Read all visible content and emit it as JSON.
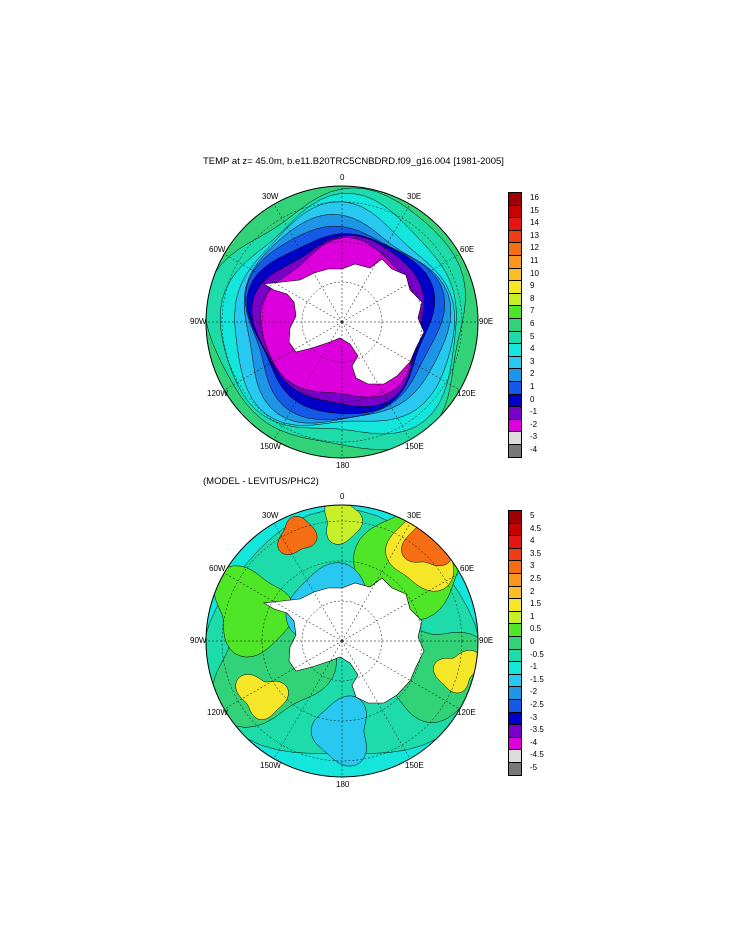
{
  "panels": [
    {
      "id": "temp",
      "title": "TEMP at z=  45.0m, b.e11.B20TRC5CNBDRD.f09_g16.004 [1981-2005]",
      "lon_labels": [
        "0",
        "30E",
        "60E",
        "90E",
        "120E",
        "150E",
        "180",
        "150W",
        "120W",
        "90W",
        "60W",
        "30W"
      ],
      "colorbar": {
        "ticks": [
          "16",
          "15",
          "14",
          "13",
          "12",
          "11",
          "10",
          "9",
          "8",
          "7",
          "6",
          "5",
          "4",
          "3",
          "2",
          "1",
          "0",
          "-1",
          "-2",
          "-3",
          "-4"
        ],
        "colors": [
          "#a00000",
          "#c80000",
          "#e61414",
          "#f03c14",
          "#f56e14",
          "#fa961e",
          "#fabe28",
          "#f5e628",
          "#c8f028",
          "#50e628",
          "#32d278",
          "#1edcaa",
          "#14e6dc",
          "#28c8f0",
          "#1e96e6",
          "#145ae6",
          "#0000c8",
          "#7800c8",
          "#dc00dc",
          "#dcdcdc",
          "#787878"
        ]
      }
    },
    {
      "id": "diff",
      "title": "(MODEL - LEVITUS/PHC2)",
      "lon_labels": [
        "0",
        "30E",
        "60E",
        "90E",
        "120E",
        "150E",
        "180",
        "150W",
        "120W",
        "90W",
        "60W",
        "30W"
      ],
      "colorbar": {
        "ticks": [
          "5",
          "4.5",
          "4",
          "3.5",
          "3",
          "2.5",
          "2",
          "1.5",
          "1",
          "0.5",
          "0",
          "-0.5",
          "-1",
          "-1.5",
          "-2",
          "-2.5",
          "-3",
          "-3.5",
          "-4",
          "-4.5",
          "-5"
        ],
        "colors": [
          "#a00000",
          "#c80000",
          "#e61414",
          "#f03c14",
          "#f56e14",
          "#fa961e",
          "#fabe28",
          "#f5e628",
          "#c8f028",
          "#50e628",
          "#32d278",
          "#1edcaa",
          "#14e6dc",
          "#28c8f0",
          "#1e96e6",
          "#145ae6",
          "#0000c8",
          "#7800c8",
          "#dc00dc",
          "#dcdcdc",
          "#787878"
        ]
      }
    }
  ],
  "colors": {
    "land": "#ffffff",
    "outline": "#000000",
    "temp_rings": [
      "#1edcaa",
      "#14e6dc",
      "#28c8f0",
      "#1e96e6",
      "#145ae6",
      "#0000c8",
      "#7800c8",
      "#dc00dc"
    ],
    "diff_base": "#14e6dc",
    "diff_patches": {
      "orange": "#f56e14",
      "yellow": "#f5e628",
      "lightgreen": "#c8f028",
      "green": "#50e628",
      "teal": "#32d278",
      "aqua": "#1edcaa",
      "blue": "#28c8f0"
    }
  }
}
